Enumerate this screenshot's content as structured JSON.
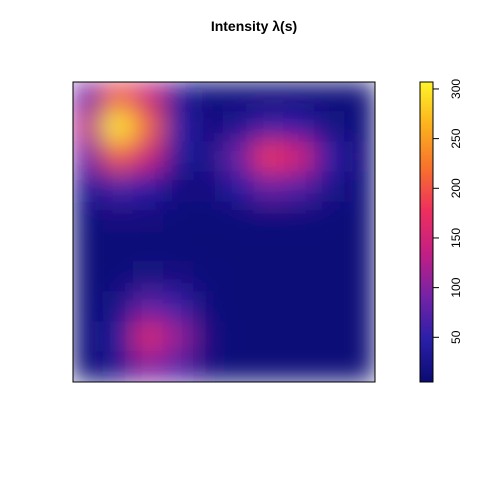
{
  "chart_data": {
    "type": "heatmap",
    "title": "Intensity λ(s)",
    "values": [
      [
        91,
        203,
        143,
        37,
        12,
        11,
        12,
        11,
        10,
        10
      ],
      [
        133,
        303,
        212,
        51,
        16,
        32,
        60,
        51,
        22,
        11
      ],
      [
        91,
        203,
        143,
        38,
        24,
        87,
        181,
        149,
        53,
        15
      ],
      [
        33,
        66,
        48,
        18,
        16,
        44,
        86,
        72,
        29,
        12
      ],
      [
        13,
        17,
        15,
        11,
        10,
        12,
        14,
        14,
        11,
        10
      ],
      [
        10,
        10,
        10,
        10,
        10,
        10,
        10,
        10,
        10,
        10
      ],
      [
        10,
        12,
        20,
        17,
        11,
        10,
        10,
        10,
        10,
        10
      ],
      [
        10,
        24,
        81,
        58,
        14,
        10,
        10,
        10,
        10,
        10
      ],
      [
        11,
        39,
        158,
        109,
        18,
        10,
        10,
        10,
        10,
        10
      ],
      [
        10,
        28,
        102,
        72,
        15,
        10,
        10,
        10,
        10,
        10
      ]
    ],
    "zlim": [
      5,
      307
    ],
    "zticks": [
      50,
      100,
      150,
      200,
      250,
      300
    ],
    "colors": [
      "#0b0b72",
      "#2a1fa8",
      "#7523a6",
      "#c21f84",
      "#ee2f5e",
      "#f8722c",
      "#fbb21e",
      "#fff42a"
    ]
  }
}
